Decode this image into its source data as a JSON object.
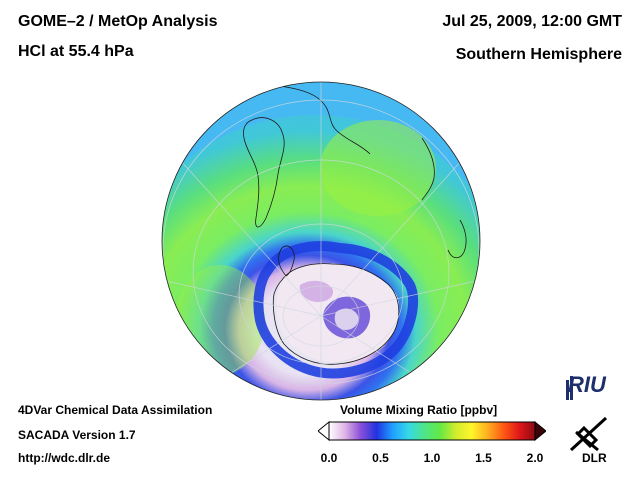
{
  "header": {
    "title": "GOME–2 / MetOp Analysis",
    "subtitle": "HCl at 55.4 hPa",
    "date": "Jul 25, 2009, 12:00 GMT",
    "hemisphere": "Southern Hemisphere"
  },
  "footer": {
    "line1": "4DVar Chemical Data Assimilation",
    "line2": "SACADA Version 1.7",
    "line3": "http://wdc.dlr.de"
  },
  "colorbar": {
    "title": "Volume Mixing Ratio [ppbv]",
    "ticks": [
      "0.0",
      "0.5",
      "1.0",
      "1.5",
      "2.0"
    ],
    "range": [
      0.0,
      2.0
    ],
    "colors": [
      "#ffffff",
      "#e0b4e6",
      "#8a4fd8",
      "#2233e0",
      "#1f9fff",
      "#35d8e8",
      "#4ee58a",
      "#63e844",
      "#d0ec2e",
      "#fff52a",
      "#ffb020",
      "#ff5a14",
      "#e01818",
      "#8c0a14"
    ]
  },
  "map": {
    "projection": "orthographic, south polar view",
    "background_color": "#47b9f2",
    "land_outline_color": "#1a1a1a"
  },
  "logos": {
    "riu": "RIU",
    "dlr": "DLR"
  }
}
